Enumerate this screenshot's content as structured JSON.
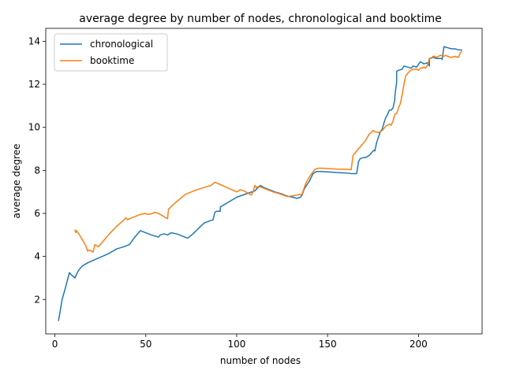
{
  "chart_data": {
    "type": "line",
    "title": "average degree by number of nodes, chronological and booktime",
    "xlabel": "number of nodes",
    "ylabel": "average degree",
    "xlim": [
      -5,
      235
    ],
    "ylim": [
      0.4,
      14.6
    ],
    "xticks": [
      0,
      50,
      100,
      150,
      200
    ],
    "yticks": [
      2,
      4,
      6,
      8,
      10,
      12,
      14
    ],
    "grid": false,
    "legend_position": "upper-left",
    "series": [
      {
        "name": "chronological",
        "color": "#1f77b4",
        "x": [
          2,
          4,
          6,
          8,
          9,
          11,
          13,
          15,
          18,
          22,
          26,
          30,
          34,
          38,
          41,
          44,
          47,
          50,
          53,
          57,
          58,
          60,
          62,
          64,
          67,
          70,
          73,
          76,
          79,
          82,
          85,
          87,
          88,
          89,
          90,
          91,
          91,
          93,
          96,
          100,
          105,
          110,
          113,
          115,
          118,
          121,
          125,
          128,
          131,
          133,
          135,
          136,
          137,
          138,
          140,
          142,
          144,
          146,
          150,
          155,
          160,
          163,
          166,
          167,
          168,
          170,
          171,
          173,
          175,
          176,
          176,
          177,
          179,
          180,
          181,
          182,
          183,
          184,
          185,
          186,
          187,
          187,
          188,
          188,
          189,
          191,
          192,
          194,
          196,
          197,
          199,
          201,
          203,
          205,
          206,
          206,
          208,
          210,
          211,
          213,
          213,
          214,
          216,
          218,
          220,
          222,
          224
        ],
        "values": [
          1.0,
          2.0,
          2.6,
          3.25,
          3.15,
          3.0,
          3.35,
          3.55,
          3.7,
          3.85,
          4.0,
          4.15,
          4.35,
          4.45,
          4.55,
          4.9,
          5.2,
          5.1,
          5.0,
          4.9,
          5.0,
          5.05,
          5.0,
          5.1,
          5.05,
          4.95,
          4.85,
          5.05,
          5.3,
          5.55,
          5.65,
          5.7,
          6.05,
          6.1,
          6.1,
          6.1,
          6.3,
          6.4,
          6.55,
          6.75,
          6.9,
          7.05,
          7.3,
          7.2,
          7.1,
          7.0,
          6.9,
          6.8,
          6.75,
          6.7,
          6.75,
          6.85,
          7.1,
          7.25,
          7.5,
          7.85,
          7.95,
          7.95,
          7.93,
          7.9,
          7.88,
          7.85,
          7.85,
          8.4,
          8.55,
          8.6,
          8.6,
          8.7,
          8.9,
          8.95,
          8.9,
          9.3,
          9.8,
          9.9,
          10.2,
          10.45,
          10.6,
          10.8,
          10.8,
          10.9,
          11.3,
          11.45,
          12.1,
          12.6,
          12.65,
          12.7,
          12.85,
          12.8,
          12.75,
          12.85,
          12.8,
          13.05,
          12.95,
          13.0,
          12.85,
          13.2,
          13.25,
          13.2,
          13.2,
          13.2,
          13.15,
          13.75,
          13.7,
          13.65,
          13.65,
          13.6,
          13.6
        ]
      },
      {
        "name": "booktime",
        "color": "#ff7f0e",
        "x": [
          11,
          11.5,
          12,
          15,
          17,
          18,
          19,
          20,
          21,
          22,
          24,
          27,
          30,
          34,
          38,
          39,
          40,
          41,
          44,
          47,
          50,
          51,
          53,
          55,
          57,
          60,
          62,
          62.5,
          67,
          72,
          78,
          86,
          88,
          92,
          96,
          100,
          102,
          104,
          106,
          108,
          109,
          110,
          111,
          112,
          114,
          117,
          120,
          124,
          128,
          131,
          133,
          136,
          137,
          138,
          140,
          143,
          145,
          147,
          150,
          155,
          160,
          163,
          164,
          166,
          168,
          170,
          171,
          172,
          173,
          174,
          175,
          176,
          178,
          180,
          182,
          183,
          184,
          185,
          186,
          187,
          188,
          189,
          190,
          191,
          192,
          193,
          194,
          195,
          196,
          197,
          198,
          199,
          200,
          201,
          202,
          203,
          204,
          205,
          206,
          207,
          208,
          209,
          210,
          212,
          214,
          215,
          216,
          218,
          220,
          222,
          223,
          224
        ],
        "values": [
          5.25,
          5.1,
          5.2,
          4.8,
          4.5,
          4.25,
          4.3,
          4.25,
          4.2,
          4.55,
          4.45,
          4.75,
          5.05,
          5.4,
          5.7,
          5.8,
          5.7,
          5.75,
          5.85,
          5.95,
          6.0,
          5.95,
          5.98,
          6.05,
          6.0,
          5.85,
          5.75,
          6.2,
          6.55,
          6.9,
          7.1,
          7.3,
          7.45,
          7.3,
          7.15,
          7.0,
          7.1,
          7.05,
          6.95,
          6.85,
          7.0,
          7.3,
          7.2,
          7.25,
          7.2,
          7.1,
          7.0,
          6.9,
          6.78,
          6.82,
          6.85,
          6.9,
          7.15,
          7.4,
          7.7,
          8.05,
          8.1,
          8.1,
          8.08,
          8.06,
          8.05,
          8.03,
          8.7,
          8.9,
          9.1,
          9.3,
          9.4,
          9.55,
          9.7,
          9.75,
          9.85,
          9.8,
          9.75,
          9.85,
          10.05,
          10.1,
          10.15,
          10.1,
          10.3,
          10.6,
          10.65,
          10.9,
          11.1,
          11.5,
          12.0,
          12.4,
          12.5,
          12.6,
          12.65,
          12.7,
          12.7,
          12.7,
          12.65,
          12.75,
          12.75,
          12.8,
          12.75,
          12.9,
          13.2,
          13.2,
          13.3,
          13.3,
          13.25,
          13.35,
          13.3,
          13.35,
          13.3,
          13.25,
          13.3,
          13.25,
          13.45,
          13.55
        ]
      }
    ]
  }
}
